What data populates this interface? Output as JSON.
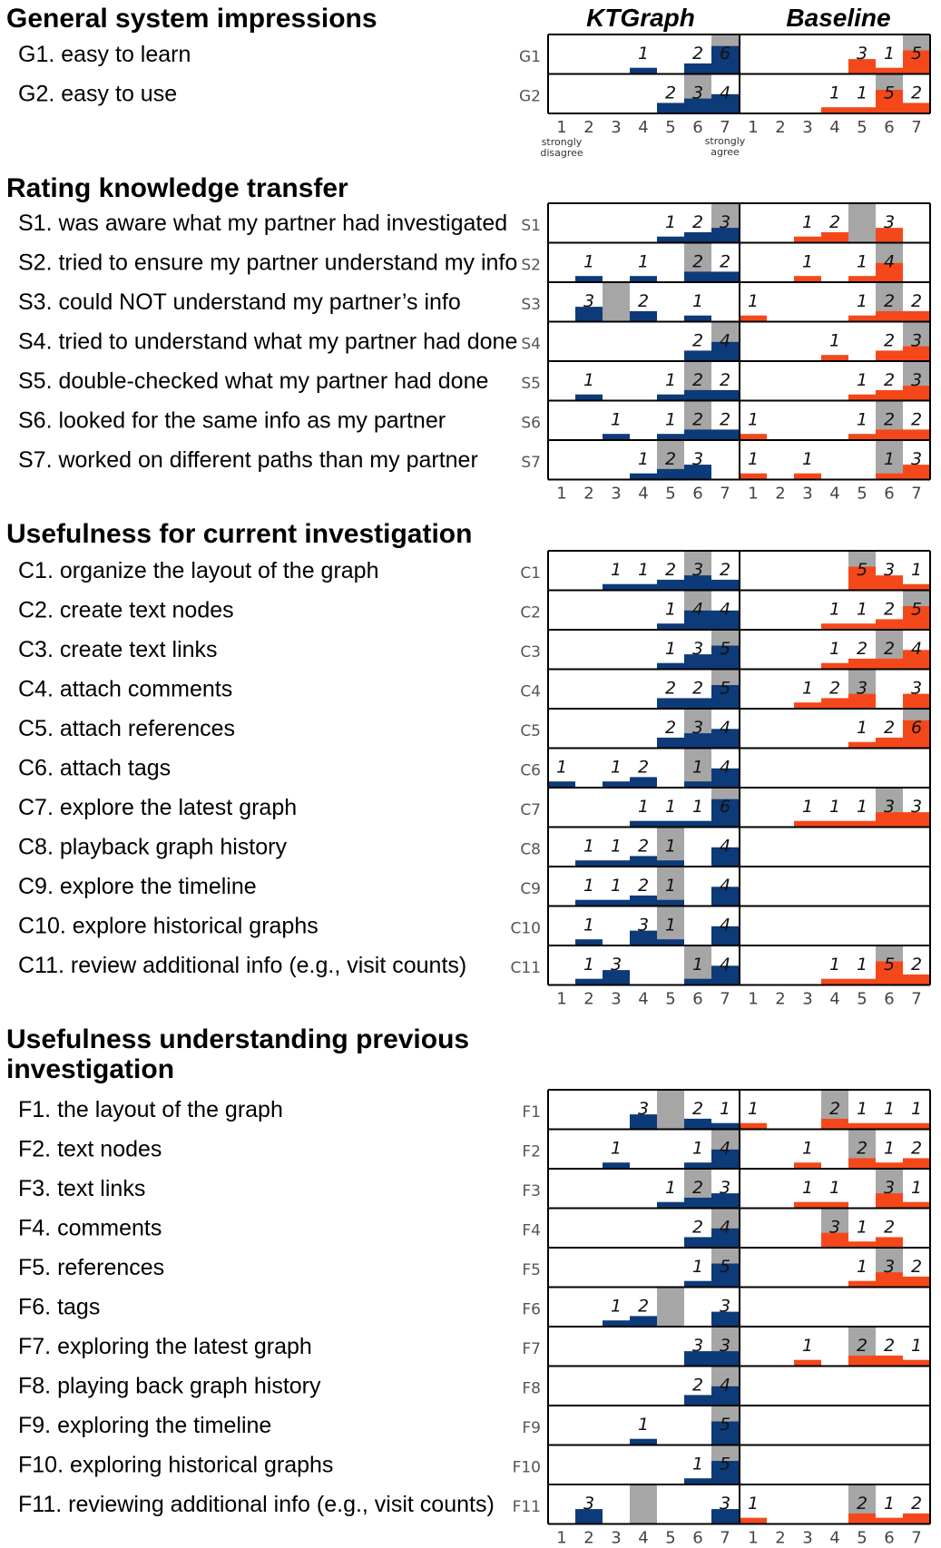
{
  "chart_data": {
    "type": "bar",
    "column_titles": [
      "KTGraph",
      "Baseline"
    ],
    "scale": [
      1,
      2,
      3,
      4,
      5,
      6,
      7
    ],
    "scale_notes": {
      "low": "strongly\ndisagree",
      "high": "strongly\nagree"
    },
    "colors": {
      "KTGraph": "#0d3a78",
      "Baseline": "#f5481a",
      "median": "#a6a6a6"
    },
    "sections": [
      {
        "title": "General system impressions",
        "rows": [
          {
            "id": "G1",
            "label": "G1. easy to learn",
            "kt": {
              "counts": [
                0,
                0,
                0,
                1,
                0,
                2,
                6
              ],
              "median": 7
            },
            "bl": {
              "counts": [
                0,
                0,
                0,
                0,
                3,
                1,
                5
              ],
              "median": 7
            }
          },
          {
            "id": "G2",
            "label": "G2. easy to use",
            "kt": {
              "counts": [
                0,
                0,
                0,
                0,
                2,
                3,
                4
              ],
              "median": 6
            },
            "bl": {
              "counts": [
                0,
                0,
                0,
                1,
                1,
                5,
                2
              ],
              "median": 6
            }
          }
        ]
      },
      {
        "title": "Rating knowledge transfer",
        "rows": [
          {
            "id": "S1",
            "label": "S1. was aware what my partner had investigated",
            "kt": {
              "counts": [
                0,
                0,
                0,
                0,
                1,
                2,
                3
              ],
              "median": 7
            },
            "bl": {
              "counts": [
                0,
                0,
                1,
                2,
                0,
                3,
                0
              ],
              "median": 5
            }
          },
          {
            "id": "S2",
            "label": "S2. tried to ensure my partner understand my info",
            "kt": {
              "counts": [
                0,
                1,
                0,
                1,
                0,
                2,
                2
              ],
              "median": 6
            },
            "bl": {
              "counts": [
                0,
                0,
                1,
                0,
                1,
                4,
                0
              ],
              "median": 6
            }
          },
          {
            "id": "S3",
            "label": "S3. could NOT understand my partner’s info",
            "kt": {
              "counts": [
                0,
                3,
                0,
                2,
                0,
                1,
                0
              ],
              "median": 3
            },
            "bl": {
              "counts": [
                1,
                0,
                0,
                0,
                1,
                2,
                2
              ],
              "median": 6
            }
          },
          {
            "id": "S4",
            "label": "S4. tried to understand what my partner had done",
            "kt": {
              "counts": [
                0,
                0,
                0,
                0,
                0,
                2,
                4
              ],
              "median": 7
            },
            "bl": {
              "counts": [
                0,
                0,
                0,
                1,
                0,
                2,
                3
              ],
              "median": 7
            }
          },
          {
            "id": "S5",
            "label": "S5. double-checked what my partner had done",
            "kt": {
              "counts": [
                0,
                1,
                0,
                0,
                1,
                2,
                2
              ],
              "median": 6
            },
            "bl": {
              "counts": [
                0,
                0,
                0,
                0,
                1,
                2,
                3
              ],
              "median": 7
            }
          },
          {
            "id": "S6",
            "label": "S6. looked for the same info as my partner",
            "kt": {
              "counts": [
                0,
                0,
                1,
                0,
                1,
                2,
                2
              ],
              "median": 6
            },
            "bl": {
              "counts": [
                1,
                0,
                0,
                0,
                1,
                2,
                2
              ],
              "median": 6
            }
          },
          {
            "id": "S7",
            "label": "S7. worked on different paths than my partner",
            "kt": {
              "counts": [
                0,
                0,
                0,
                1,
                2,
                3,
                0
              ],
              "median": 5
            },
            "bl": {
              "counts": [
                1,
                0,
                1,
                0,
                0,
                1,
                3
              ],
              "median": 6
            }
          }
        ]
      },
      {
        "title": "Usefulness for current investigation",
        "rows": [
          {
            "id": "C1",
            "label": "C1. organize the layout of the graph",
            "kt": {
              "counts": [
                0,
                0,
                1,
                1,
                2,
                3,
                2
              ],
              "median": 6
            },
            "bl": {
              "counts": [
                0,
                0,
                0,
                0,
                5,
                3,
                1
              ],
              "median": 5
            }
          },
          {
            "id": "C2",
            "label": "C2. create text nodes",
            "kt": {
              "counts": [
                0,
                0,
                0,
                0,
                1,
                4,
                4
              ],
              "median": 6
            },
            "bl": {
              "counts": [
                0,
                0,
                0,
                1,
                1,
                2,
                5
              ],
              "median": 7
            }
          },
          {
            "id": "C3",
            "label": "C3. create text links",
            "kt": {
              "counts": [
                0,
                0,
                0,
                0,
                1,
                3,
                5
              ],
              "median": 7
            },
            "bl": {
              "counts": [
                0,
                0,
                0,
                1,
                2,
                2,
                4
              ],
              "median": 6
            }
          },
          {
            "id": "C4",
            "label": "C4. attach comments",
            "kt": {
              "counts": [
                0,
                0,
                0,
                0,
                2,
                2,
                5
              ],
              "median": 7
            },
            "bl": {
              "counts": [
                0,
                0,
                1,
                2,
                3,
                0,
                3
              ],
              "median": 5
            }
          },
          {
            "id": "C5",
            "label": "C5. attach references",
            "kt": {
              "counts": [
                0,
                0,
                0,
                0,
                2,
                3,
                4
              ],
              "median": 6
            },
            "bl": {
              "counts": [
                0,
                0,
                0,
                0,
                1,
                2,
                6
              ],
              "median": 7
            }
          },
          {
            "id": "C6",
            "label": "C6. attach tags",
            "kt": {
              "counts": [
                1,
                0,
                1,
                2,
                0,
                1,
                4
              ],
              "median": 6
            },
            "bl": {
              "counts": [
                0,
                0,
                0,
                0,
                0,
                0,
                0
              ],
              "median": null
            }
          },
          {
            "id": "C7",
            "label": "C7. explore the latest graph",
            "kt": {
              "counts": [
                0,
                0,
                0,
                1,
                1,
                1,
                6
              ],
              "median": 7
            },
            "bl": {
              "counts": [
                0,
                0,
                1,
                1,
                1,
                3,
                3
              ],
              "median": 6
            }
          },
          {
            "id": "C8",
            "label": "C8. playback graph history",
            "kt": {
              "counts": [
                0,
                1,
                1,
                2,
                1,
                0,
                4
              ],
              "median": 5
            },
            "bl": {
              "counts": [
                0,
                0,
                0,
                0,
                0,
                0,
                0
              ],
              "median": null
            }
          },
          {
            "id": "C9",
            "label": "C9. explore the timeline",
            "kt": {
              "counts": [
                0,
                1,
                1,
                2,
                1,
                0,
                4
              ],
              "median": 5
            },
            "bl": {
              "counts": [
                0,
                0,
                0,
                0,
                0,
                0,
                0
              ],
              "median": null
            }
          },
          {
            "id": "C10",
            "label": "C10. explore historical graphs",
            "kt": {
              "counts": [
                0,
                1,
                0,
                3,
                1,
                0,
                4
              ],
              "median": 5
            },
            "bl": {
              "counts": [
                0,
                0,
                0,
                0,
                0,
                0,
                0
              ],
              "median": null
            }
          },
          {
            "id": "C11",
            "label": "C11. review additional info (e.g., visit counts)",
            "kt": {
              "counts": [
                0,
                1,
                3,
                0,
                0,
                1,
                4
              ],
              "median": 6
            },
            "bl": {
              "counts": [
                0,
                0,
                0,
                1,
                1,
                5,
                2
              ],
              "median": 6
            }
          }
        ]
      },
      {
        "title": "Usefulness understanding previous\ninvestigation",
        "rows": [
          {
            "id": "F1",
            "label": "F1. the layout of the graph",
            "kt": {
              "counts": [
                0,
                0,
                0,
                3,
                0,
                2,
                1
              ],
              "median": 5
            },
            "bl": {
              "counts": [
                1,
                0,
                0,
                2,
                1,
                1,
                1
              ],
              "median": 4
            }
          },
          {
            "id": "F2",
            "label": "F2. text nodes",
            "kt": {
              "counts": [
                0,
                0,
                1,
                0,
                0,
                1,
                4
              ],
              "median": 7
            },
            "bl": {
              "counts": [
                0,
                0,
                1,
                0,
                2,
                1,
                2
              ],
              "median": 5
            }
          },
          {
            "id": "F3",
            "label": "F3. text links",
            "kt": {
              "counts": [
                0,
                0,
                0,
                0,
                1,
                2,
                3
              ],
              "median": 6
            },
            "bl": {
              "counts": [
                0,
                0,
                1,
                1,
                0,
                3,
                1
              ],
              "median": 6
            }
          },
          {
            "id": "F4",
            "label": "F4. comments",
            "kt": {
              "counts": [
                0,
                0,
                0,
                0,
                0,
                2,
                4
              ],
              "median": 7
            },
            "bl": {
              "counts": [
                0,
                0,
                0,
                3,
                1,
                2,
                0
              ],
              "median": 4
            }
          },
          {
            "id": "F5",
            "label": "F5. references",
            "kt": {
              "counts": [
                0,
                0,
                0,
                0,
                0,
                1,
                5
              ],
              "median": 7
            },
            "bl": {
              "counts": [
                0,
                0,
                0,
                0,
                1,
                3,
                2
              ],
              "median": 6
            }
          },
          {
            "id": "F6",
            "label": "F6. tags",
            "kt": {
              "counts": [
                0,
                0,
                1,
                2,
                0,
                0,
                3
              ],
              "median": 5
            },
            "bl": {
              "counts": [
                0,
                0,
                0,
                0,
                0,
                0,
                0
              ],
              "median": null
            }
          },
          {
            "id": "F7",
            "label": "F7. exploring the latest graph",
            "kt": {
              "counts": [
                0,
                0,
                0,
                0,
                0,
                3,
                3
              ],
              "median": 7
            },
            "bl": {
              "counts": [
                0,
                0,
                1,
                0,
                2,
                2,
                1
              ],
              "median": 5
            }
          },
          {
            "id": "F8",
            "label": "F8. playing back graph history",
            "kt": {
              "counts": [
                0,
                0,
                0,
                0,
                0,
                2,
                4
              ],
              "median": 7
            },
            "bl": {
              "counts": [
                0,
                0,
                0,
                0,
                0,
                0,
                0
              ],
              "median": null
            }
          },
          {
            "id": "F9",
            "label": "F9. exploring the timeline",
            "kt": {
              "counts": [
                0,
                0,
                0,
                1,
                0,
                0,
                5
              ],
              "median": 7
            },
            "bl": {
              "counts": [
                0,
                0,
                0,
                0,
                0,
                0,
                0
              ],
              "median": null
            }
          },
          {
            "id": "F10",
            "label": "F10. exploring historical graphs",
            "kt": {
              "counts": [
                0,
                0,
                0,
                0,
                0,
                1,
                5
              ],
              "median": 7
            },
            "bl": {
              "counts": [
                0,
                0,
                0,
                0,
                0,
                0,
                0
              ],
              "median": null
            }
          },
          {
            "id": "F11",
            "label": "F11. reviewing additional info (e.g., visit counts)",
            "kt": {
              "counts": [
                0,
                3,
                0,
                0,
                0,
                0,
                3
              ],
              "median": 4
            },
            "bl": {
              "counts": [
                1,
                0,
                0,
                0,
                2,
                1,
                2
              ],
              "median": 5
            }
          }
        ]
      }
    ]
  }
}
